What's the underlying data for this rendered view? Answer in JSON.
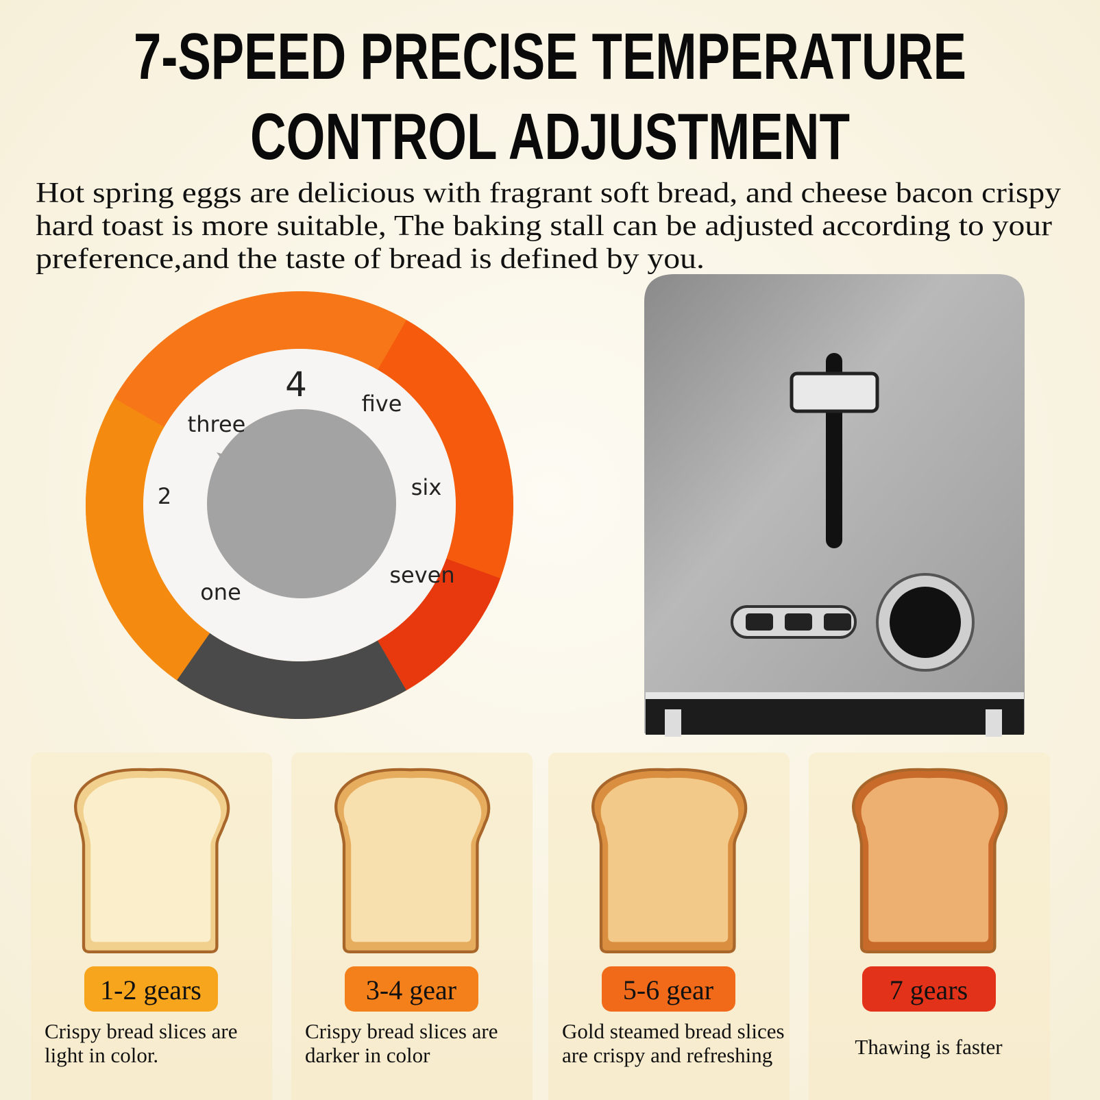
{
  "header": {
    "title_lines": [
      "7-SPEED PRECISE TEMPERATURE",
      "CONTROL ADJUSTMENT"
    ],
    "description_lines": [
      "Hot spring eggs are delicious with fragrant soft bread, and cheese bacon crispy",
      "hard toast is more suitable, The baking stall can be adjusted according to your",
      "preference,and the taste of bread is defined by you."
    ]
  },
  "dial": {
    "labels": [
      "4",
      "five",
      "three",
      "six",
      "2",
      "seven",
      "one"
    ]
  },
  "cards": [
    {
      "badge": "1-2 gears",
      "caption_lines": [
        "Crispy bread slices are",
        "light in color."
      ]
    },
    {
      "badge": "3-4 gear",
      "caption_lines": [
        "Crispy bread slices are",
        "darker in color"
      ]
    },
    {
      "badge": "5-6 gear",
      "caption_lines": [
        "Gold steamed bread slices",
        "are crispy and refreshing"
      ]
    },
    {
      "badge": "7 gears",
      "caption_lines": [
        "Thawing is faster"
      ]
    }
  ]
}
